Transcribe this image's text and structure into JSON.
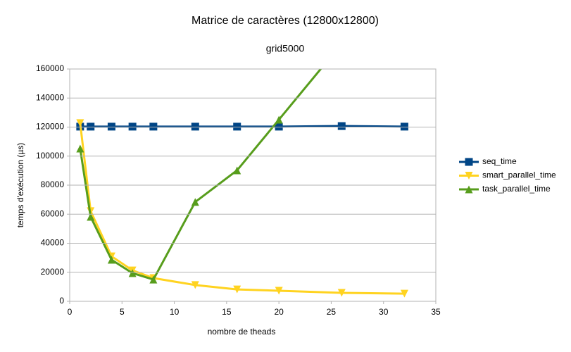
{
  "chart_data": {
    "type": "line",
    "title": "Matrice de caractères (12800x12800)",
    "subtitle": "grid5000",
    "x_label": "nombre de theads",
    "y_label": "temps d'exécution (µs)",
    "x": [
      1,
      2,
      4,
      6,
      8,
      12,
      16,
      20,
      26,
      32
    ],
    "series": [
      {
        "name": "seq_time",
        "color": "#004586",
        "marker": "square",
        "values": [
          120300,
          120300,
          120300,
          120300,
          120300,
          120300,
          120300,
          120300,
          120700,
          120300
        ]
      },
      {
        "name": "smart_parallel_time",
        "color": "#ffd320",
        "marker": "triangle-down",
        "values": [
          122700,
          62100,
          31000,
          21300,
          16000,
          11200,
          8200,
          7300,
          5800,
          5300
        ]
      },
      {
        "name": "task_parallel_time",
        "color": "#579d1c",
        "marker": "triangle-up",
        "values": [
          105200,
          58200,
          28600,
          19400,
          15000,
          68400,
          90200,
          125100,
          177500,
          null
        ]
      }
    ],
    "xlim": [
      0,
      35
    ],
    "xticks": [
      0,
      5,
      10,
      15,
      20,
      25,
      30,
      35
    ],
    "ylim": [
      0,
      160000
    ],
    "yticks": [
      0,
      20000,
      40000,
      60000,
      80000,
      100000,
      120000,
      140000,
      160000
    ],
    "grid": true,
    "legend": "right"
  }
}
